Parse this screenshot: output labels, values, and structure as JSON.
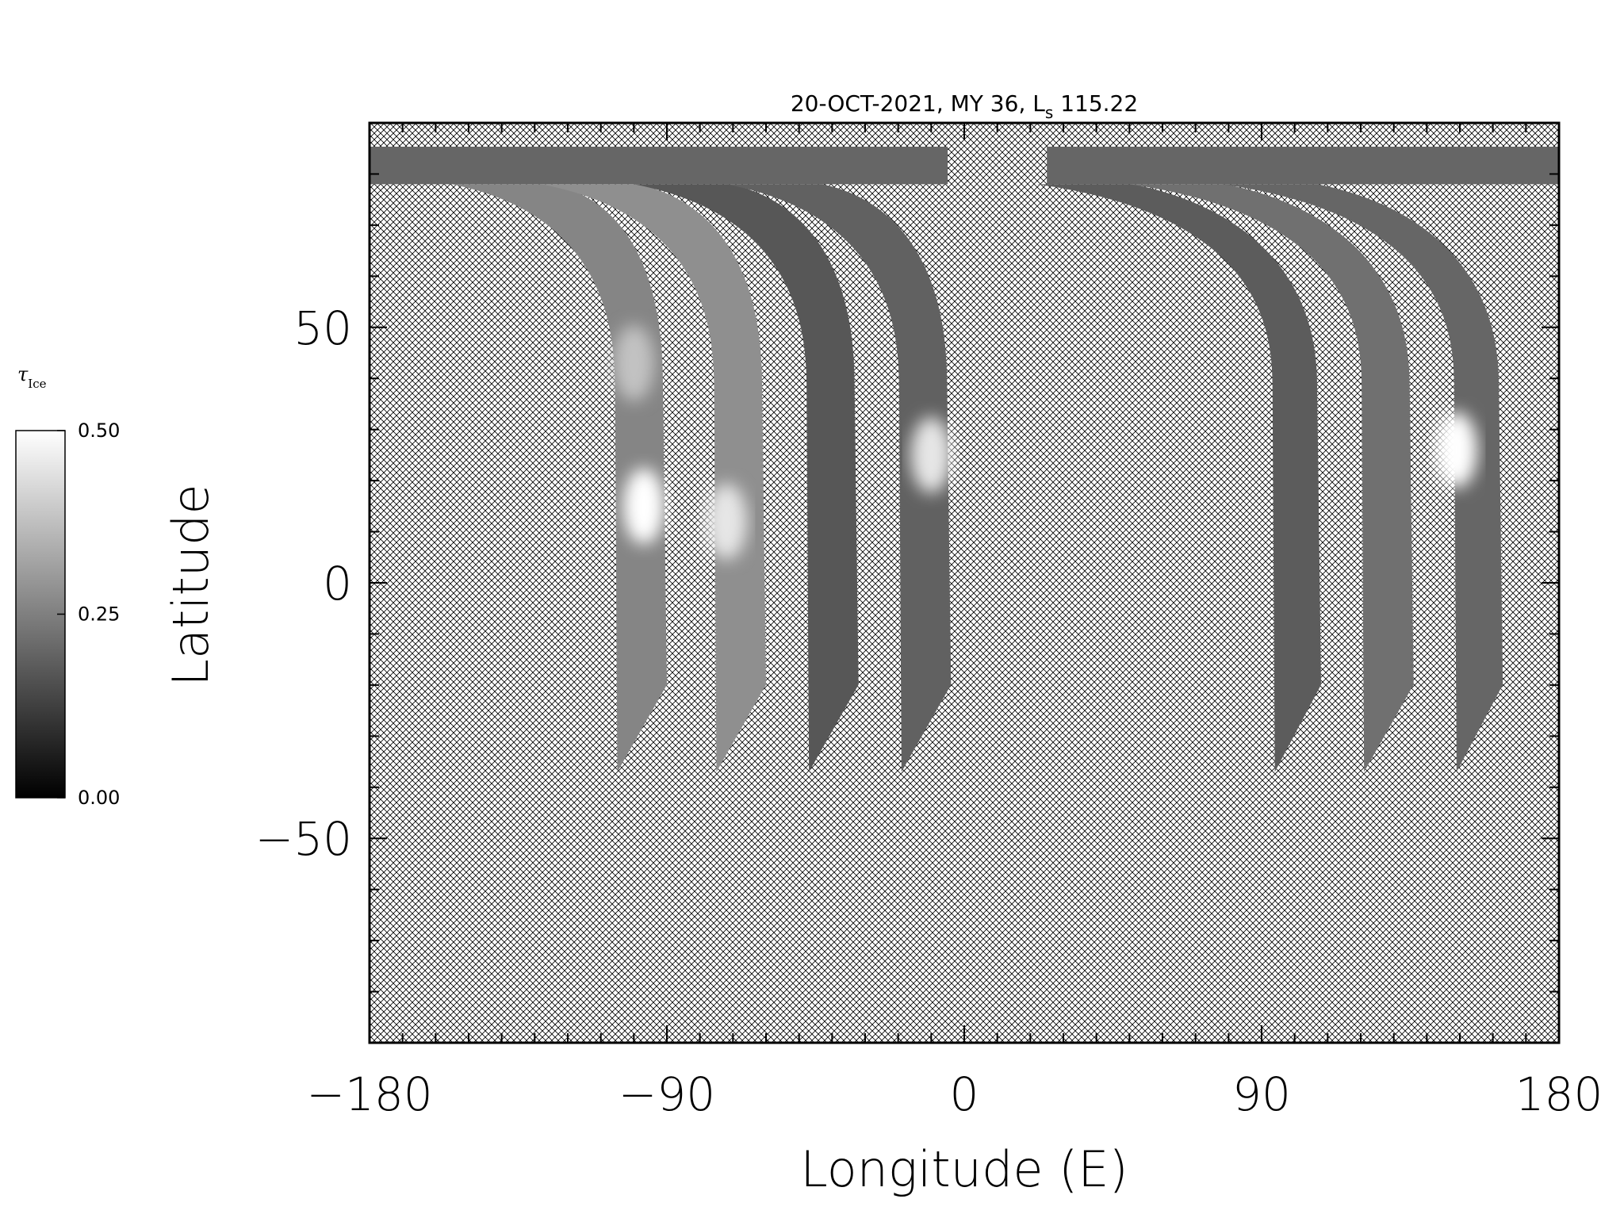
{
  "chart_data": {
    "type": "heatmap",
    "title": {
      "date": "20-OCT-2021",
      "mars_year": "MY 36",
      "ls_symbol": "L",
      "ls_subscript": "s",
      "ls_value": "115.22"
    },
    "xlabel": "Longitude (E)",
    "ylabel": "Latitude",
    "xlim": [
      -180,
      180
    ],
    "ylim": [
      -90,
      90
    ],
    "x_ticks": [
      {
        "value": -180,
        "label": "−180"
      },
      {
        "value": -90,
        "label": "−90"
      },
      {
        "value": 0,
        "label": "0"
      },
      {
        "value": 90,
        "label": "90"
      },
      {
        "value": 180,
        "label": "180"
      }
    ],
    "y_ticks": [
      {
        "value": 50,
        "label": "50"
      },
      {
        "value": 0,
        "label": "0"
      },
      {
        "value": -50,
        "label": "−50"
      }
    ],
    "x_minor_step": 10,
    "y_minor_step": 10,
    "no_data_fill": "crosshatch",
    "colorscale": [
      "#000000",
      "#ffffff"
    ],
    "colorbar": {
      "label": "τ",
      "label_subscript": "Ice",
      "min": 0.0,
      "max": 0.5,
      "ticks": [
        {
          "value": 0.0,
          "label": "0.00"
        },
        {
          "value": 0.25,
          "label": "0.25"
        },
        {
          "value": 0.5,
          "label": "0.50"
        }
      ]
    },
    "north_cap": {
      "lat_bottom": 78,
      "segments": [
        {
          "lon_start": -180,
          "lon_end": -5
        },
        {
          "lon_start": 25,
          "lon_end": 180
        }
      ],
      "mean_value": 0.2
    },
    "swaths": [
      {
        "lon_top_left": -155,
        "lon_top_right": -125,
        "lon_bottom_left": -105,
        "lon_bottom_right": -90,
        "lat_bottom": -37,
        "mean_value": 0.26,
        "bright_spots": [
          {
            "lon": -97,
            "lat": 15,
            "value": 0.5
          },
          {
            "lon": -100,
            "lat": 43,
            "value": 0.38
          }
        ]
      },
      {
        "lon_top_left": -128,
        "lon_top_right": -99,
        "lon_bottom_left": -75,
        "lon_bottom_right": -60,
        "lat_bottom": -37,
        "mean_value": 0.28,
        "bright_spots": [
          {
            "lon": -72,
            "lat": 12,
            "value": 0.45
          }
        ]
      },
      {
        "lon_top_left": -100,
        "lon_top_right": -71,
        "lon_bottom_left": -47,
        "lon_bottom_right": -32,
        "lat_bottom": -37,
        "mean_value": 0.17,
        "bright_spots": []
      },
      {
        "lon_top_left": -72,
        "lon_top_right": -43,
        "lon_bottom_left": -19,
        "lon_bottom_right": -4,
        "lat_bottom": -37,
        "mean_value": 0.19,
        "bright_spots": [
          {
            "lon": -10,
            "lat": 25,
            "value": 0.45
          }
        ]
      },
      {
        "lon_top_left": 22,
        "lon_top_right": 51,
        "lon_bottom_left": 94,
        "lon_bottom_right": 108,
        "lat_bottom": -37,
        "mean_value": 0.18,
        "bright_spots": []
      },
      {
        "lon_top_left": 50,
        "lon_top_right": 79,
        "lon_bottom_left": 121,
        "lon_bottom_right": 136,
        "lat_bottom": -37,
        "mean_value": 0.22,
        "bright_spots": []
      },
      {
        "lon_top_left": 78,
        "lon_top_right": 107,
        "lon_bottom_left": 149,
        "lon_bottom_right": 163,
        "lat_bottom": -37,
        "mean_value": 0.2,
        "bright_spots": [
          {
            "lon": 149,
            "lat": 26,
            "value": 0.5
          }
        ]
      }
    ]
  }
}
